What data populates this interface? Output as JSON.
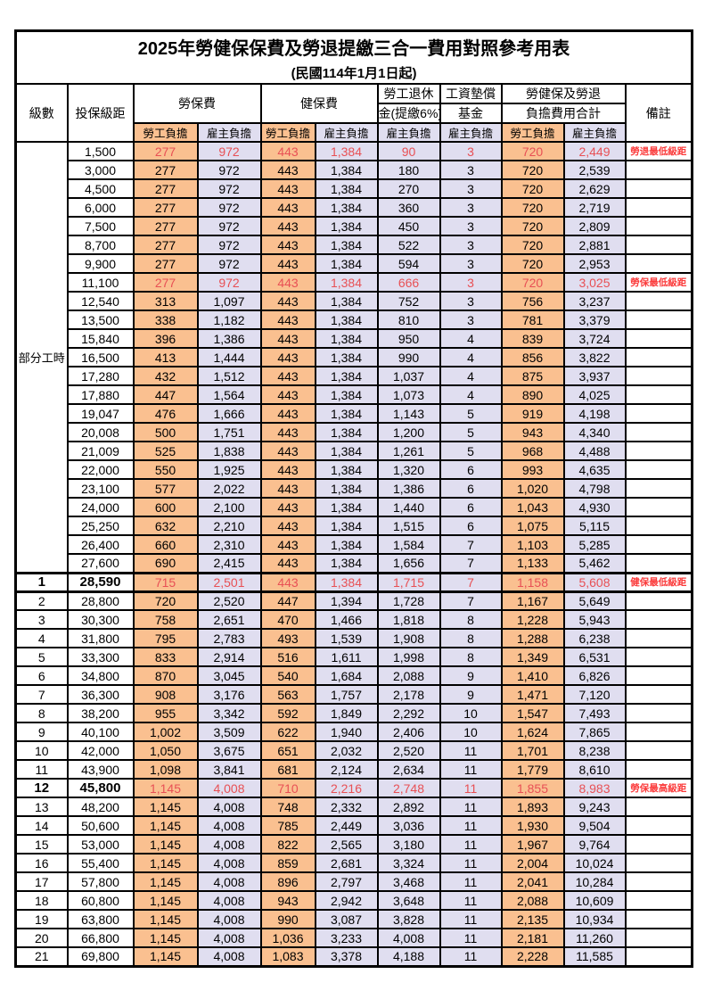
{
  "title": "2025年勞健保保費及勞退提繳三合一費用對照參考用表",
  "subtitle": "(民國114年1月1日起)",
  "colors": {
    "employee_bg": "#FAC090",
    "employer_bg": "#E0DEF0",
    "highlight_text": "#E85055",
    "remark_text": "#FB3B3B"
  },
  "header": {
    "level": "級數",
    "salary_bracket": "投保級距",
    "labor_insurance": "勞保費",
    "health_insurance": "健保費",
    "pension_line1": "勞工退休",
    "pension_line2": "金(提繳6%)",
    "wage_fund_line1": "工資墊償",
    "wage_fund_line2": "基金",
    "total_line1": "勞健保及勞退",
    "total_line2": "負擔費用合計",
    "remark": "備註",
    "employee": "勞工負擔",
    "employer": "雇主負擔"
  },
  "part_time_label": "部分工時",
  "part_time_rowspan": 23,
  "rows": [
    {
      "level": "",
      "salary": "1,500",
      "labor_emp": "277",
      "labor_er": "972",
      "health_emp": "443",
      "health_er": "1,384",
      "pension_er": "90",
      "fund_er": "3",
      "total_emp": "720",
      "total_er": "2,449",
      "remark": "勞退最低級距",
      "red": true,
      "bold": false,
      "section": false
    },
    {
      "level": "",
      "salary": "3,000",
      "labor_emp": "277",
      "labor_er": "972",
      "health_emp": "443",
      "health_er": "1,384",
      "pension_er": "180",
      "fund_er": "3",
      "total_emp": "720",
      "total_er": "2,539",
      "remark": "",
      "red": false,
      "bold": false,
      "section": false
    },
    {
      "level": "",
      "salary": "4,500",
      "labor_emp": "277",
      "labor_er": "972",
      "health_emp": "443",
      "health_er": "1,384",
      "pension_er": "270",
      "fund_er": "3",
      "total_emp": "720",
      "total_er": "2,629",
      "remark": "",
      "red": false,
      "bold": false,
      "section": false
    },
    {
      "level": "",
      "salary": "6,000",
      "labor_emp": "277",
      "labor_er": "972",
      "health_emp": "443",
      "health_er": "1,384",
      "pension_er": "360",
      "fund_er": "3",
      "total_emp": "720",
      "total_er": "2,719",
      "remark": "",
      "red": false,
      "bold": false,
      "section": false
    },
    {
      "level": "",
      "salary": "7,500",
      "labor_emp": "277",
      "labor_er": "972",
      "health_emp": "443",
      "health_er": "1,384",
      "pension_er": "450",
      "fund_er": "3",
      "total_emp": "720",
      "total_er": "2,809",
      "remark": "",
      "red": false,
      "bold": false,
      "section": false
    },
    {
      "level": "",
      "salary": "8,700",
      "labor_emp": "277",
      "labor_er": "972",
      "health_emp": "443",
      "health_er": "1,384",
      "pension_er": "522",
      "fund_er": "3",
      "total_emp": "720",
      "total_er": "2,881",
      "remark": "",
      "red": false,
      "bold": false,
      "section": false
    },
    {
      "level": "",
      "salary": "9,900",
      "labor_emp": "277",
      "labor_er": "972",
      "health_emp": "443",
      "health_er": "1,384",
      "pension_er": "594",
      "fund_er": "3",
      "total_emp": "720",
      "total_er": "2,953",
      "remark": "",
      "red": false,
      "bold": false,
      "section": false
    },
    {
      "level": "",
      "salary": "11,100",
      "labor_emp": "277",
      "labor_er": "972",
      "health_emp": "443",
      "health_er": "1,384",
      "pension_er": "666",
      "fund_er": "3",
      "total_emp": "720",
      "total_er": "3,025",
      "remark": "勞保最低級距",
      "red": true,
      "bold": false,
      "section": false
    },
    {
      "level": "",
      "salary": "12,540",
      "labor_emp": "313",
      "labor_er": "1,097",
      "health_emp": "443",
      "health_er": "1,384",
      "pension_er": "752",
      "fund_er": "3",
      "total_emp": "756",
      "total_er": "3,237",
      "remark": "",
      "red": false,
      "bold": false,
      "section": false
    },
    {
      "level": "",
      "salary": "13,500",
      "labor_emp": "338",
      "labor_er": "1,182",
      "health_emp": "443",
      "health_er": "1,384",
      "pension_er": "810",
      "fund_er": "3",
      "total_emp": "781",
      "total_er": "3,379",
      "remark": "",
      "red": false,
      "bold": false,
      "section": false
    },
    {
      "level": "",
      "salary": "15,840",
      "labor_emp": "396",
      "labor_er": "1,386",
      "health_emp": "443",
      "health_er": "1,384",
      "pension_er": "950",
      "fund_er": "4",
      "total_emp": "839",
      "total_er": "3,724",
      "remark": "",
      "red": false,
      "bold": false,
      "section": false
    },
    {
      "level": "",
      "salary": "16,500",
      "labor_emp": "413",
      "labor_er": "1,444",
      "health_emp": "443",
      "health_er": "1,384",
      "pension_er": "990",
      "fund_er": "4",
      "total_emp": "856",
      "total_er": "3,822",
      "remark": "",
      "red": false,
      "bold": false,
      "section": false
    },
    {
      "level": "",
      "salary": "17,280",
      "labor_emp": "432",
      "labor_er": "1,512",
      "health_emp": "443",
      "health_er": "1,384",
      "pension_er": "1,037",
      "fund_er": "4",
      "total_emp": "875",
      "total_er": "3,937",
      "remark": "",
      "red": false,
      "bold": false,
      "section": false
    },
    {
      "level": "",
      "salary": "17,880",
      "labor_emp": "447",
      "labor_er": "1,564",
      "health_emp": "443",
      "health_er": "1,384",
      "pension_er": "1,073",
      "fund_er": "4",
      "total_emp": "890",
      "total_er": "4,025",
      "remark": "",
      "red": false,
      "bold": false,
      "section": false
    },
    {
      "level": "",
      "salary": "19,047",
      "labor_emp": "476",
      "labor_er": "1,666",
      "health_emp": "443",
      "health_er": "1,384",
      "pension_er": "1,143",
      "fund_er": "5",
      "total_emp": "919",
      "total_er": "4,198",
      "remark": "",
      "red": false,
      "bold": false,
      "section": false
    },
    {
      "level": "",
      "salary": "20,008",
      "labor_emp": "500",
      "labor_er": "1,751",
      "health_emp": "443",
      "health_er": "1,384",
      "pension_er": "1,200",
      "fund_er": "5",
      "total_emp": "943",
      "total_er": "4,340",
      "remark": "",
      "red": false,
      "bold": false,
      "section": false
    },
    {
      "level": "",
      "salary": "21,009",
      "labor_emp": "525",
      "labor_er": "1,838",
      "health_emp": "443",
      "health_er": "1,384",
      "pension_er": "1,261",
      "fund_er": "5",
      "total_emp": "968",
      "total_er": "4,488",
      "remark": "",
      "red": false,
      "bold": false,
      "section": false
    },
    {
      "level": "",
      "salary": "22,000",
      "labor_emp": "550",
      "labor_er": "1,925",
      "health_emp": "443",
      "health_er": "1,384",
      "pension_er": "1,320",
      "fund_er": "6",
      "total_emp": "993",
      "total_er": "4,635",
      "remark": "",
      "red": false,
      "bold": false,
      "section": false
    },
    {
      "level": "",
      "salary": "23,100",
      "labor_emp": "577",
      "labor_er": "2,022",
      "health_emp": "443",
      "health_er": "1,384",
      "pension_er": "1,386",
      "fund_er": "6",
      "total_emp": "1,020",
      "total_er": "4,798",
      "remark": "",
      "red": false,
      "bold": false,
      "section": false
    },
    {
      "level": "",
      "salary": "24,000",
      "labor_emp": "600",
      "labor_er": "2,100",
      "health_emp": "443",
      "health_er": "1,384",
      "pension_er": "1,440",
      "fund_er": "6",
      "total_emp": "1,043",
      "total_er": "4,930",
      "remark": "",
      "red": false,
      "bold": false,
      "section": false
    },
    {
      "level": "",
      "salary": "25,250",
      "labor_emp": "632",
      "labor_er": "2,210",
      "health_emp": "443",
      "health_er": "1,384",
      "pension_er": "1,515",
      "fund_er": "6",
      "total_emp": "1,075",
      "total_er": "5,115",
      "remark": "",
      "red": false,
      "bold": false,
      "section": false
    },
    {
      "level": "",
      "salary": "26,400",
      "labor_emp": "660",
      "labor_er": "2,310",
      "health_emp": "443",
      "health_er": "1,384",
      "pension_er": "1,584",
      "fund_er": "7",
      "total_emp": "1,103",
      "total_er": "5,285",
      "remark": "",
      "red": false,
      "bold": false,
      "section": false
    },
    {
      "level": "",
      "salary": "27,600",
      "labor_emp": "690",
      "labor_er": "2,415",
      "health_emp": "443",
      "health_er": "1,384",
      "pension_er": "1,656",
      "fund_er": "7",
      "total_emp": "1,133",
      "total_er": "5,462",
      "remark": "",
      "red": false,
      "bold": false,
      "section": false
    },
    {
      "level": "1",
      "salary": "28,590",
      "labor_emp": "715",
      "labor_er": "2,501",
      "health_emp": "443",
      "health_er": "1,384",
      "pension_er": "1,715",
      "fund_er": "7",
      "total_emp": "1,158",
      "total_er": "5,608",
      "remark": "健保最低級距",
      "red": true,
      "bold": true,
      "section": true
    },
    {
      "level": "2",
      "salary": "28,800",
      "labor_emp": "720",
      "labor_er": "2,520",
      "health_emp": "447",
      "health_er": "1,394",
      "pension_er": "1,728",
      "fund_er": "7",
      "total_emp": "1,167",
      "total_er": "5,649",
      "remark": "",
      "red": false,
      "bold": false,
      "section": false
    },
    {
      "level": "3",
      "salary": "30,300",
      "labor_emp": "758",
      "labor_er": "2,651",
      "health_emp": "470",
      "health_er": "1,466",
      "pension_er": "1,818",
      "fund_er": "8",
      "total_emp": "1,228",
      "total_er": "5,943",
      "remark": "",
      "red": false,
      "bold": false,
      "section": false
    },
    {
      "level": "4",
      "salary": "31,800",
      "labor_emp": "795",
      "labor_er": "2,783",
      "health_emp": "493",
      "health_er": "1,539",
      "pension_er": "1,908",
      "fund_er": "8",
      "total_emp": "1,288",
      "total_er": "6,238",
      "remark": "",
      "red": false,
      "bold": false,
      "section": false
    },
    {
      "level": "5",
      "salary": "33,300",
      "labor_emp": "833",
      "labor_er": "2,914",
      "health_emp": "516",
      "health_er": "1,611",
      "pension_er": "1,998",
      "fund_er": "8",
      "total_emp": "1,349",
      "total_er": "6,531",
      "remark": "",
      "red": false,
      "bold": false,
      "section": false
    },
    {
      "level": "6",
      "salary": "34,800",
      "labor_emp": "870",
      "labor_er": "3,045",
      "health_emp": "540",
      "health_er": "1,684",
      "pension_er": "2,088",
      "fund_er": "9",
      "total_emp": "1,410",
      "total_er": "6,826",
      "remark": "",
      "red": false,
      "bold": false,
      "section": false
    },
    {
      "level": "7",
      "salary": "36,300",
      "labor_emp": "908",
      "labor_er": "3,176",
      "health_emp": "563",
      "health_er": "1,757",
      "pension_er": "2,178",
      "fund_er": "9",
      "total_emp": "1,471",
      "total_er": "7,120",
      "remark": "",
      "red": false,
      "bold": false,
      "section": false
    },
    {
      "level": "8",
      "salary": "38,200",
      "labor_emp": "955",
      "labor_er": "3,342",
      "health_emp": "592",
      "health_er": "1,849",
      "pension_er": "2,292",
      "fund_er": "10",
      "total_emp": "1,547",
      "total_er": "7,493",
      "remark": "",
      "red": false,
      "bold": false,
      "section": false
    },
    {
      "level": "9",
      "salary": "40,100",
      "labor_emp": "1,002",
      "labor_er": "3,509",
      "health_emp": "622",
      "health_er": "1,940",
      "pension_er": "2,406",
      "fund_er": "10",
      "total_emp": "1,624",
      "total_er": "7,865",
      "remark": "",
      "red": false,
      "bold": false,
      "section": false
    },
    {
      "level": "10",
      "salary": "42,000",
      "labor_emp": "1,050",
      "labor_er": "3,675",
      "health_emp": "651",
      "health_er": "2,032",
      "pension_er": "2,520",
      "fund_er": "11",
      "total_emp": "1,701",
      "total_er": "8,238",
      "remark": "",
      "red": false,
      "bold": false,
      "section": false
    },
    {
      "level": "11",
      "salary": "43,900",
      "labor_emp": "1,098",
      "labor_er": "3,841",
      "health_emp": "681",
      "health_er": "2,124",
      "pension_er": "2,634",
      "fund_er": "11",
      "total_emp": "1,779",
      "total_er": "8,610",
      "remark": "",
      "red": false,
      "bold": false,
      "section": false
    },
    {
      "level": "12",
      "salary": "45,800",
      "labor_emp": "1,145",
      "labor_er": "4,008",
      "health_emp": "710",
      "health_er": "2,216",
      "pension_er": "2,748",
      "fund_er": "11",
      "total_emp": "1,855",
      "total_er": "8,983",
      "remark": "勞保最高級距",
      "red": true,
      "bold": true,
      "section": false
    },
    {
      "level": "13",
      "salary": "48,200",
      "labor_emp": "1,145",
      "labor_er": "4,008",
      "health_emp": "748",
      "health_er": "2,332",
      "pension_er": "2,892",
      "fund_er": "11",
      "total_emp": "1,893",
      "total_er": "9,243",
      "remark": "",
      "red": false,
      "bold": false,
      "section": false
    },
    {
      "level": "14",
      "salary": "50,600",
      "labor_emp": "1,145",
      "labor_er": "4,008",
      "health_emp": "785",
      "health_er": "2,449",
      "pension_er": "3,036",
      "fund_er": "11",
      "total_emp": "1,930",
      "total_er": "9,504",
      "remark": "",
      "red": false,
      "bold": false,
      "section": false
    },
    {
      "level": "15",
      "salary": "53,000",
      "labor_emp": "1,145",
      "labor_er": "4,008",
      "health_emp": "822",
      "health_er": "2,565",
      "pension_er": "3,180",
      "fund_er": "11",
      "total_emp": "1,967",
      "total_er": "9,764",
      "remark": "",
      "red": false,
      "bold": false,
      "section": false
    },
    {
      "level": "16",
      "salary": "55,400",
      "labor_emp": "1,145",
      "labor_er": "4,008",
      "health_emp": "859",
      "health_er": "2,681",
      "pension_er": "3,324",
      "fund_er": "11",
      "total_emp": "2,004",
      "total_er": "10,024",
      "remark": "",
      "red": false,
      "bold": false,
      "section": false
    },
    {
      "level": "17",
      "salary": "57,800",
      "labor_emp": "1,145",
      "labor_er": "4,008",
      "health_emp": "896",
      "health_er": "2,797",
      "pension_er": "3,468",
      "fund_er": "11",
      "total_emp": "2,041",
      "total_er": "10,284",
      "remark": "",
      "red": false,
      "bold": false,
      "section": false
    },
    {
      "level": "18",
      "salary": "60,800",
      "labor_emp": "1,145",
      "labor_er": "4,008",
      "health_emp": "943",
      "health_er": "2,942",
      "pension_er": "3,648",
      "fund_er": "11",
      "total_emp": "2,088",
      "total_er": "10,609",
      "remark": "",
      "red": false,
      "bold": false,
      "section": false
    },
    {
      "level": "19",
      "salary": "63,800",
      "labor_emp": "1,145",
      "labor_er": "4,008",
      "health_emp": "990",
      "health_er": "3,087",
      "pension_er": "3,828",
      "fund_er": "11",
      "total_emp": "2,135",
      "total_er": "10,934",
      "remark": "",
      "red": false,
      "bold": false,
      "section": false
    },
    {
      "level": "20",
      "salary": "66,800",
      "labor_emp": "1,145",
      "labor_er": "4,008",
      "health_emp": "1,036",
      "health_er": "3,233",
      "pension_er": "4,008",
      "fund_er": "11",
      "total_emp": "2,181",
      "total_er": "11,260",
      "remark": "",
      "red": false,
      "bold": false,
      "section": false
    },
    {
      "level": "21",
      "salary": "69,800",
      "labor_emp": "1,145",
      "labor_er": "4,008",
      "health_emp": "1,083",
      "health_er": "3,378",
      "pension_er": "4,188",
      "fund_er": "11",
      "total_emp": "2,228",
      "total_er": "11,585",
      "remark": "",
      "red": false,
      "bold": false,
      "section": false
    }
  ]
}
